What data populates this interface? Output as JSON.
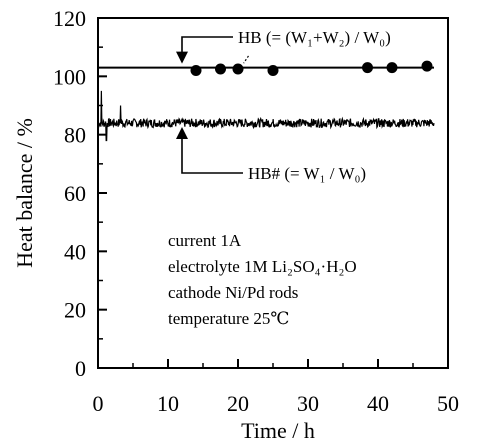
{
  "chart_data": {
    "type": "line",
    "xlabel": "Time / h",
    "ylabel": "Heat balance / %",
    "xlim": [
      0,
      50
    ],
    "ylim": [
      0,
      120
    ],
    "x_ticks": [
      0,
      10,
      20,
      30,
      40,
      50
    ],
    "x_tick_labels": [
      "0",
      "10",
      "20",
      "30",
      "40",
      "50"
    ],
    "y_ticks": [
      0,
      20,
      40,
      60,
      80,
      100,
      120
    ],
    "y_tick_labels": [
      "0",
      "20",
      "40",
      "60",
      "80",
      "100",
      "120"
    ],
    "grid": false,
    "series": [
      {
        "name": "HB (= (W1+W2) / W0)",
        "style": "line+markers",
        "line_value": 103,
        "line_x_range": [
          0,
          48
        ],
        "markers": [
          {
            "x": 14,
            "y": 102
          },
          {
            "x": 17.5,
            "y": 102.5
          },
          {
            "x": 20,
            "y": 102.5
          },
          {
            "x": 25,
            "y": 102
          },
          {
            "x": 38.5,
            "y": 103
          },
          {
            "x": 42,
            "y": 103
          },
          {
            "x": 47,
            "y": 103.5
          }
        ]
      },
      {
        "name": "HB# (= W1 / W0)",
        "style": "noisy-line",
        "mean": 84,
        "noise_amplitude": 1.5,
        "x_range": [
          0,
          48
        ],
        "spikes": [
          {
            "x": 0.5,
            "y": 95
          },
          {
            "x": 1.2,
            "y": 78
          },
          {
            "x": 3.2,
            "y": 90
          }
        ]
      }
    ],
    "annotations": {
      "hb_label": "HB (= (W₁+W₂) / W₀)",
      "hbs_label": "HB# (= W₁ / W₀)",
      "conditions": [
        "current   1A",
        "electrolyte   1M Li₂SO₄·H₂O",
        "cathode   Ni/Pd rods",
        "temperature   25℃"
      ]
    },
    "colors": {
      "ink": "#000000",
      "background": "#ffffff"
    }
  }
}
